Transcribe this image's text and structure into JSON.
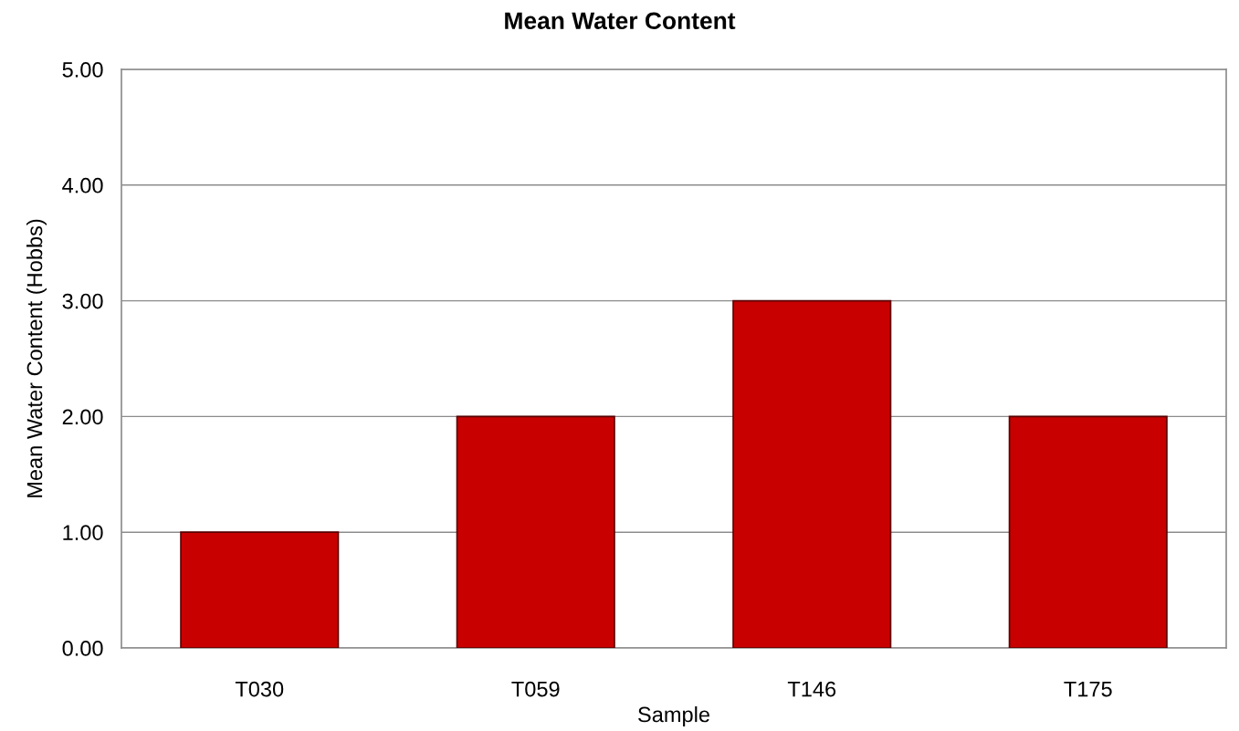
{
  "chart_data": {
    "type": "bar",
    "title": "Mean Water Content",
    "xlabel": "Sample",
    "ylabel": "Mean Water Content (Hobbs)",
    "categories": [
      "T030",
      "T059",
      "T146",
      "T175"
    ],
    "series": [
      {
        "color": "#c80000",
        "values": [
          1,
          2,
          3,
          2
        ]
      }
    ],
    "ylim": [
      0,
      5
    ],
    "yticks": [
      {
        "value": 0,
        "label": "0.00"
      },
      {
        "value": 1,
        "label": "1.00"
      },
      {
        "value": 2,
        "label": "2.00"
      },
      {
        "value": 3,
        "label": "3.00"
      },
      {
        "value": 4,
        "label": "4.00"
      },
      {
        "value": 5,
        "label": "5.00"
      }
    ],
    "grid": "y"
  }
}
